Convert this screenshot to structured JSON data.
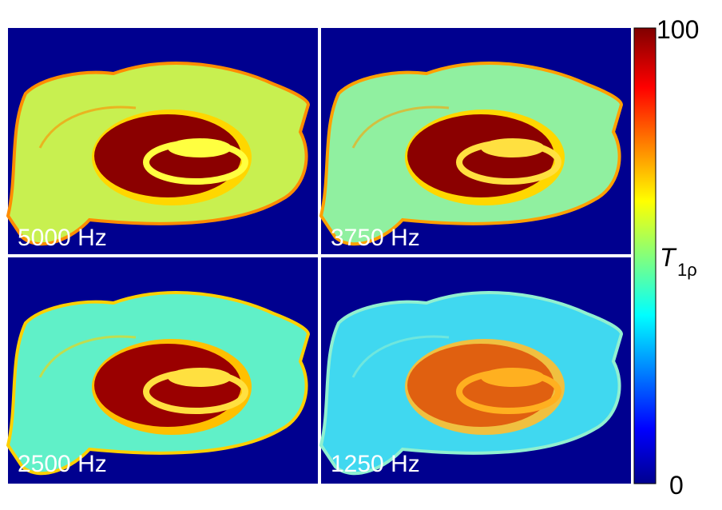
{
  "panels": [
    {
      "label": "5000 Hz"
    },
    {
      "label": "3750 Hz"
    },
    {
      "label": "2500 Hz"
    },
    {
      "label": "1250 Hz"
    }
  ],
  "colorbar": {
    "max_label": "100",
    "min_label": "0",
    "title_main": "T",
    "title_sub": "1ρ"
  }
}
